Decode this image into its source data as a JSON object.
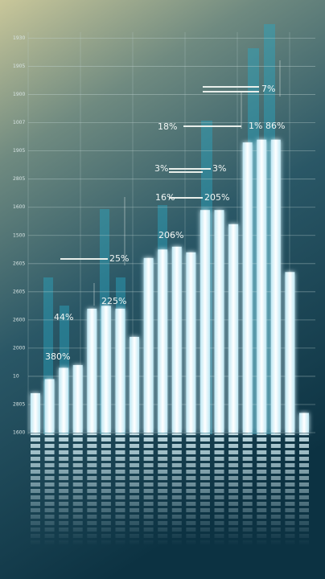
{
  "chart_data": {
    "type": "bar",
    "values": [
      1.4,
      1.9,
      2.3,
      2.4,
      4.4,
      4.5,
      4.4,
      3.4,
      6.2,
      6.5,
      6.6,
      6.4,
      7.9,
      7.9,
      7.4,
      10.3,
      10.4,
      10.4,
      5.7,
      0.7
    ],
    "color": "#eaf8fc",
    "ylim": [
      0,
      14.5
    ],
    "yticks": [
      {
        "value": 0,
        "label": "1600"
      },
      {
        "value": 1,
        "label": "2805"
      },
      {
        "value": 2,
        "label": "10"
      },
      {
        "value": 3,
        "label": "2000"
      },
      {
        "value": 4,
        "label": "2600"
      },
      {
        "value": 5,
        "label": "2605"
      },
      {
        "value": 6,
        "label": "2605"
      },
      {
        "value": 7,
        "label": "1500"
      },
      {
        "value": 8,
        "label": "1600"
      },
      {
        "value": 9,
        "label": "2805"
      },
      {
        "value": 10,
        "label": "1905"
      },
      {
        "value": 11,
        "label": "1007"
      },
      {
        "value": 12,
        "label": "1900"
      },
      {
        "value": 13,
        "label": "1905"
      },
      {
        "value": 14,
        "label": "1930"
      }
    ],
    "grid": true,
    "annotations": [
      "380%",
      "44%",
      "225%",
      "25%",
      "206%",
      "16%",
      "205%",
      "3%",
      "3%",
      "18%",
      "1% 86%",
      "7%"
    ]
  }
}
